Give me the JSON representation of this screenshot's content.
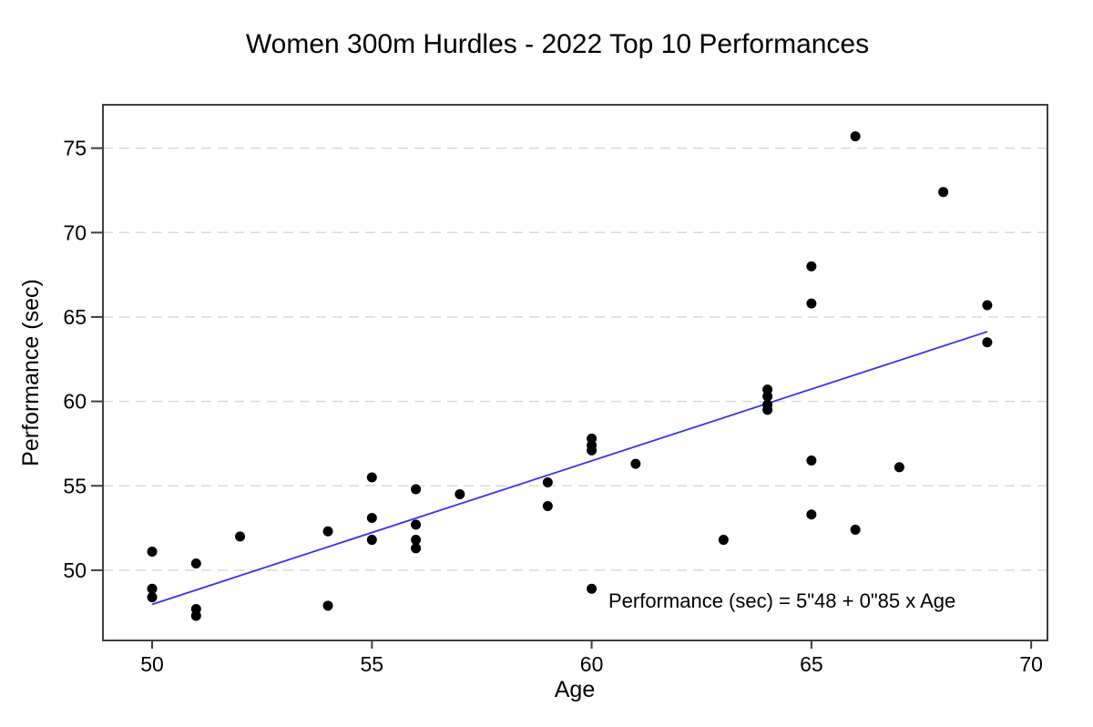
{
  "page": {
    "background_color": "#ffffff"
  },
  "chart_data": {
    "type": "scatter",
    "title": "Women 300m Hurdles - 2022 Top 10 Performances",
    "xlabel": "Age",
    "ylabel": "Performance (sec)",
    "x_ticks": [
      50,
      55,
      60,
      65,
      70
    ],
    "y_ticks": [
      50,
      55,
      60,
      65,
      70,
      75
    ],
    "xlim": [
      48.88,
      70.37
    ],
    "ylim": [
      45.84,
      77.57
    ],
    "grid": "horizontal-dashed",
    "legend": "none",
    "annotation": {
      "text": "Performance (sec) =  5\"48 + 0\"85 x Age"
    },
    "regression": {
      "intercept": 5.48,
      "slope": 0.85,
      "x_start": 50,
      "x_end": 69
    },
    "points": [
      {
        "age": 50,
        "perf": 51.1
      },
      {
        "age": 50,
        "perf": 48.9
      },
      {
        "age": 50,
        "perf": 48.4
      },
      {
        "age": 51,
        "perf": 50.4
      },
      {
        "age": 51,
        "perf": 47.7
      },
      {
        "age": 51,
        "perf": 47.3
      },
      {
        "age": 52,
        "perf": 52.0
      },
      {
        "age": 54,
        "perf": 52.3
      },
      {
        "age": 54,
        "perf": 47.9
      },
      {
        "age": 55,
        "perf": 55.5
      },
      {
        "age": 55,
        "perf": 53.1
      },
      {
        "age": 55,
        "perf": 51.8
      },
      {
        "age": 56,
        "perf": 54.8
      },
      {
        "age": 56,
        "perf": 52.7
      },
      {
        "age": 56,
        "perf": 51.8
      },
      {
        "age": 56,
        "perf": 51.3
      },
      {
        "age": 57,
        "perf": 54.5
      },
      {
        "age": 59,
        "perf": 55.2
      },
      {
        "age": 59,
        "perf": 53.8
      },
      {
        "age": 60,
        "perf": 57.8
      },
      {
        "age": 60,
        "perf": 57.4
      },
      {
        "age": 60,
        "perf": 57.1
      },
      {
        "age": 60,
        "perf": 48.9
      },
      {
        "age": 61,
        "perf": 56.3
      },
      {
        "age": 63,
        "perf": 51.8
      },
      {
        "age": 64,
        "perf": 60.7
      },
      {
        "age": 64,
        "perf": 60.3
      },
      {
        "age": 64,
        "perf": 59.8
      },
      {
        "age": 64,
        "perf": 59.5
      },
      {
        "age": 65,
        "perf": 68.0
      },
      {
        "age": 65,
        "perf": 65.8
      },
      {
        "age": 65,
        "perf": 56.5
      },
      {
        "age": 65,
        "perf": 53.3
      },
      {
        "age": 66,
        "perf": 75.7
      },
      {
        "age": 66,
        "perf": 52.4
      },
      {
        "age": 67,
        "perf": 56.1
      },
      {
        "age": 68,
        "perf": 72.4
      },
      {
        "age": 69,
        "perf": 65.7
      },
      {
        "age": 69,
        "perf": 63.5
      }
    ],
    "colors": {
      "point": "#000000",
      "regression_line": "#3333ee",
      "grid": "#d9d9d9",
      "axis": "#3f3f3f",
      "text": "#000000"
    }
  }
}
